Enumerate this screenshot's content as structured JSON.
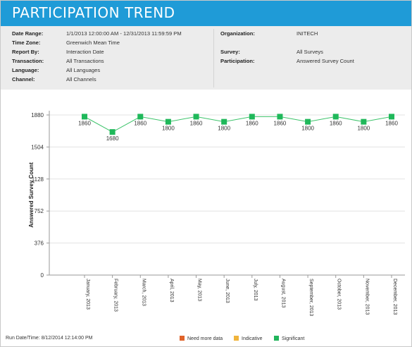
{
  "header": {
    "title": "PARTICIPATION TREND"
  },
  "filters": {
    "left": [
      {
        "label": "Date Range:",
        "value": "1/1/2013 12:00:00 AM - 12/31/2013 11:59:59 PM"
      },
      {
        "label": "Time Zone:",
        "value": "Greenwich Mean Time"
      },
      {
        "label": "Report By:",
        "value": "Interaction Date"
      },
      {
        "label": "Transaction:",
        "value": "All Transactions"
      },
      {
        "label": "Language:",
        "value": "All Languages"
      },
      {
        "label": "Channel:",
        "value": "All Channels"
      }
    ],
    "right": [
      {
        "label": "Organization:",
        "value": "INITECH"
      },
      {
        "label": "Survey:",
        "value": "All Surveys"
      },
      {
        "label": "Participation:",
        "value": "Answered Survey Count"
      }
    ]
  },
  "chart_data": {
    "type": "line",
    "ylabel": "Answered Survey Count",
    "xlabel": "",
    "yticks": [
      0,
      376,
      752,
      1128,
      1504,
      1880
    ],
    "ylim": [
      0,
      1880
    ],
    "grid": true,
    "categories": [
      "January, 2013",
      "February, 2013",
      "March, 2013",
      "April, 2013",
      "May, 2013",
      "June, 2013",
      "July, 2013",
      "August, 2013",
      "September, 2013",
      "October, 2013",
      "November, 2013",
      "December, 2013"
    ],
    "series": [
      {
        "values": [
          1860,
          1680,
          1860,
          1800,
          1860,
          1800,
          1860,
          1860,
          1800,
          1860,
          1800,
          1860
        ],
        "color": "#3cc36a",
        "marker_color": "#1fb85a"
      }
    ],
    "data_labels": [
      "1860",
      "1680",
      "1860",
      "1800",
      "1860",
      "1800",
      "1860",
      "1860",
      "1800",
      "1860",
      "1800",
      "1860"
    ]
  },
  "footer": {
    "run_date": "Run Date/Time: 8/12/2014 12:14:00 PM",
    "legend": [
      {
        "label": "Need more data",
        "color": "#e0632a"
      },
      {
        "label": "Indicative",
        "color": "#f0b43c"
      },
      {
        "label": "Significant",
        "color": "#22b45c"
      }
    ]
  }
}
